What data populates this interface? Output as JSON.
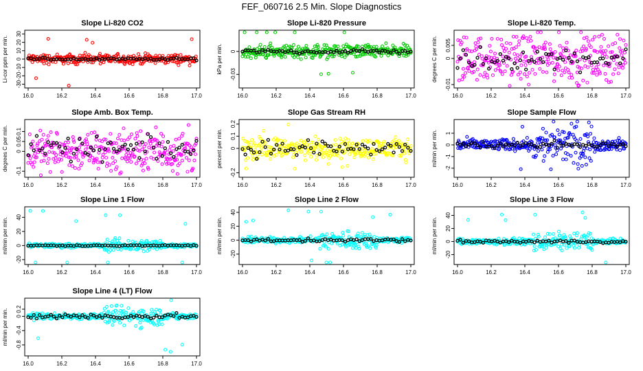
{
  "page_title": "FEF_060716  2.5 Min. Slope Diagnostics",
  "colors": {
    "black": "#000000",
    "red": "#ff0000",
    "green": "#00cc00",
    "magenta": "#ff00ff",
    "yellow": "#ffff00",
    "blue": "#0000ff",
    "cyan": "#00ffff"
  },
  "chart_data": [
    {
      "type": "scatter",
      "title": "Slope Li-820 CO2",
      "ylabel": "Li-cor ppm per min.",
      "xlim": [
        16.0,
        17.0
      ],
      "ylim": [
        -32,
        32
      ],
      "yticks": [
        -30,
        -20,
        -10,
        0,
        10,
        20,
        30
      ],
      "xticks": [
        "16.0",
        "16.2",
        "16.4",
        "16.6",
        "16.8",
        "17.0"
      ],
      "series": [
        {
          "name": "all",
          "color": "#ff0000",
          "spread": 4,
          "outlier_max": 32
        },
        {
          "name": "selected",
          "color": "#000000",
          "spread": 1,
          "center": 0
        }
      ]
    },
    {
      "type": "scatter",
      "title": "Slope Li-820 Pressure",
      "ylabel": "kPa per min.",
      "xlim": [
        16.0,
        17.0
      ],
      "ylim": [
        -0.045,
        0.025
      ],
      "yticks": [
        -0.03,
        0.0
      ],
      "xticks": [
        "16.0",
        "16.2",
        "16.4",
        "16.6",
        "16.8",
        "17.0"
      ],
      "series": [
        {
          "name": "all",
          "color": "#00cc00",
          "spread": 0.006,
          "outlier_max": 0.04
        },
        {
          "name": "selected",
          "color": "#000000",
          "spread": 0.002,
          "center": 0
        }
      ]
    },
    {
      "type": "scatter",
      "title": "Slope Li-820 Temp.",
      "ylabel": "degrees C per min.",
      "xlim": [
        16.0,
        17.0
      ],
      "ylim": [
        -0.0105,
        0.01
      ],
      "yticks": [
        -0.01,
        0.0,
        0.005
      ],
      "xticks": [
        "16.0",
        "16.2",
        "16.4",
        "16.6",
        "16.8",
        "17.0"
      ],
      "series": [
        {
          "name": "all",
          "color": "#ff00ff",
          "spread": 0.006,
          "outlier_max": 0.011
        },
        {
          "name": "selected",
          "color": "#000000",
          "spread": 0.003,
          "center": 0
        }
      ]
    },
    {
      "type": "scatter",
      "title": "Slope Amb. Box Temp.",
      "ylabel": "degrees C per min.",
      "xlim": [
        16.0,
        17.0
      ],
      "ylim": [
        -0.12,
        0.15
      ],
      "yticks": [
        -0.1,
        0.0,
        0.05,
        0.1
      ],
      "xticks": [
        "16.0",
        "16.2",
        "16.4",
        "16.6",
        "16.8",
        "17.0"
      ],
      "series": [
        {
          "name": "all",
          "color": "#ff00ff",
          "spread": 0.07,
          "outlier_max": 0.14
        },
        {
          "name": "selected",
          "color": "#000000",
          "spread": 0.04,
          "center": 0.01
        }
      ]
    },
    {
      "type": "scatter",
      "title": "Slope Gas Stream RH",
      "ylabel": "percent per min.",
      "xlim": [
        16.0,
        17.0
      ],
      "ylim": [
        -0.22,
        0.22
      ],
      "yticks": [
        -0.2,
        0.0,
        0.1,
        0.2
      ],
      "xticks": [
        "16.0",
        "16.2",
        "16.4",
        "16.6",
        "16.8",
        "17.0"
      ],
      "series": [
        {
          "name": "all",
          "color": "#ffff00",
          "spread": 0.06,
          "outlier_max": 0.2
        },
        {
          "name": "selected",
          "color": "#000000",
          "spread": 0.05,
          "center": 0
        }
      ]
    },
    {
      "type": "scatter",
      "title": "Slope Sample Flow",
      "ylabel": "ml/min per min.",
      "xlim": [
        16.0,
        17.0
      ],
      "ylim": [
        -2.6,
        2.0
      ],
      "yticks": [
        -2,
        -1,
        0,
        1
      ],
      "xticks": [
        "16.0",
        "16.2",
        "16.4",
        "16.6",
        "16.8",
        "17.0"
      ],
      "series": [
        {
          "name": "all",
          "color": "#0000ff",
          "spread": 0.35,
          "outlier_max": 2.3
        },
        {
          "name": "selected",
          "color": "#000000",
          "spread": 0.2,
          "center": 0
        }
      ]
    },
    {
      "type": "scatter",
      "title": "Slope Line 1 Flow",
      "ylabel": "ml/min per min.",
      "xlim": [
        16.0,
        17.0
      ],
      "ylim": [
        -24,
        52
      ],
      "yticks": [
        -20,
        0,
        20,
        40
      ],
      "xticks": [
        "16.0",
        "16.2",
        "16.4",
        "16.6",
        "16.8",
        "17.0"
      ],
      "series": [
        {
          "name": "all",
          "color": "#00ffff",
          "spread": 2,
          "outlier_max": 50
        },
        {
          "name": "selected",
          "color": "#000000",
          "spread": 0.6,
          "center": 0
        }
      ]
    },
    {
      "type": "scatter",
      "title": "Slope Line 2 Flow",
      "ylabel": "ml/min per min.",
      "xlim": [
        16.0,
        17.0
      ],
      "ylim": [
        -32,
        45
      ],
      "yticks": [
        -20,
        0,
        20,
        40
      ],
      "xticks": [
        "16.0",
        "16.2",
        "16.4",
        "16.6",
        "16.8",
        "17.0"
      ],
      "series": [
        {
          "name": "all",
          "color": "#00ffff",
          "spread": 3,
          "outlier_max": 44
        },
        {
          "name": "selected",
          "color": "#000000",
          "spread": 1.5,
          "center": 0
        }
      ]
    },
    {
      "type": "scatter",
      "title": "Slope Line 3 Flow",
      "ylabel": "ml/min per min.",
      "xlim": [
        16.0,
        17.0
      ],
      "ylim": [
        -32,
        50
      ],
      "yticks": [
        -20,
        0,
        20,
        40
      ],
      "xticks": [
        "16.0",
        "16.2",
        "16.4",
        "16.6",
        "16.8",
        "17.0"
      ],
      "series": [
        {
          "name": "all",
          "color": "#00ffff",
          "spread": 3,
          "outlier_max": 48
        },
        {
          "name": "selected",
          "color": "#000000",
          "spread": 1.5,
          "center": 0
        }
      ]
    },
    {
      "type": "scatter",
      "title": "Slope Line 4 (LT) Flow",
      "ylabel": "ml/min per min.",
      "xlim": [
        16.0,
        17.0
      ],
      "ylim": [
        -1.05,
        0.45
      ],
      "yticks": [
        -0.8,
        -0.4,
        0.0,
        0.2
      ],
      "xticks": [
        "16.0",
        "16.2",
        "16.4",
        "16.6",
        "16.8",
        "17.0"
      ],
      "series": [
        {
          "name": "all",
          "color": "#00ffff",
          "spread": 0.06,
          "outlier_max": 1.0
        },
        {
          "name": "selected",
          "color": "#000000",
          "spread": 0.05,
          "center": 0
        }
      ]
    }
  ]
}
